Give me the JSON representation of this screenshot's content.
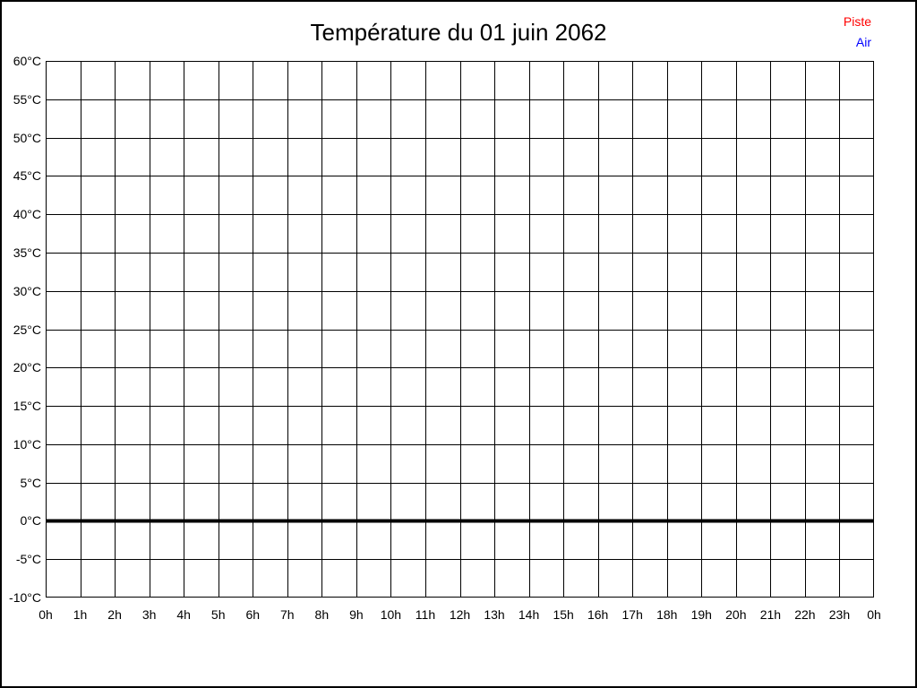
{
  "window": {
    "background": "#ffffff",
    "border_color": "#000000"
  },
  "chart_data": {
    "type": "line",
    "title": "Température du 01 juin 2062",
    "xlabel": "",
    "ylabel": "",
    "xlim_hours": [
      0,
      24
    ],
    "ylim": [
      -10,
      60
    ],
    "y_step": 5,
    "x_tick_labels": [
      "0h",
      "1h",
      "2h",
      "3h",
      "4h",
      "5h",
      "6h",
      "7h",
      "8h",
      "9h",
      "10h",
      "11h",
      "12h",
      "13h",
      "14h",
      "15h",
      "16h",
      "17h",
      "18h",
      "19h",
      "20h",
      "21h",
      "22h",
      "23h",
      "0h"
    ],
    "y_tick_labels": [
      "60°C",
      "55°C",
      "50°C",
      "45°C",
      "40°C",
      "35°C",
      "30°C",
      "25°C",
      "20°C",
      "15°C",
      "10°C",
      "5°C",
      "0°C",
      "-5°C",
      "-10°C"
    ],
    "grid": true,
    "grid_color": "#000000",
    "zero_line": {
      "value": 0,
      "color": "#000000",
      "thick": true
    },
    "legend_position": "top-right",
    "series": [
      {
        "name": "Piste",
        "color": "#ff0000",
        "values": []
      },
      {
        "name": "Air",
        "color": "#0000ff",
        "values": []
      }
    ]
  }
}
